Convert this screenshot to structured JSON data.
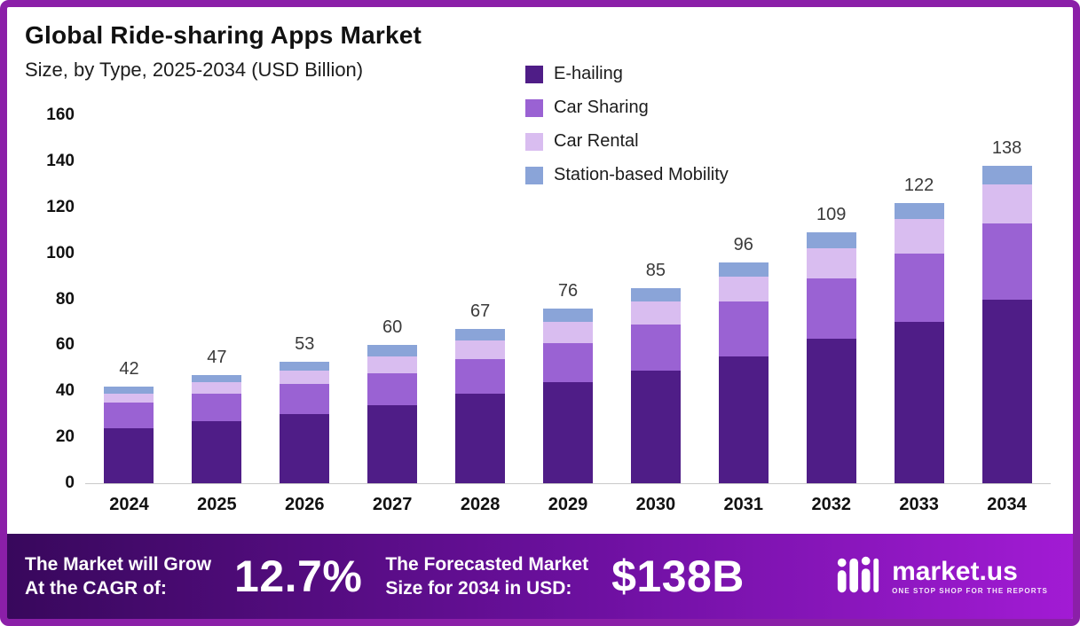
{
  "header": {
    "title": "Global Ride-sharing Apps Market",
    "subtitle": "Size, by Type, 2025-2034 (USD Billion)"
  },
  "chart_data": {
    "type": "bar",
    "stacked": true,
    "title": "Global Ride-sharing Apps Market Size, by Type, 2025-2034 (USD Billion)",
    "categories": [
      "2024",
      "2025",
      "2026",
      "2027",
      "2028",
      "2029",
      "2030",
      "2031",
      "2032",
      "2033",
      "2034"
    ],
    "series": [
      {
        "name": "E-hailing",
        "color": "#4f1d87",
        "values": [
          24,
          27,
          30,
          34,
          39,
          44,
          49,
          55,
          63,
          70,
          80
        ]
      },
      {
        "name": "Car Sharing",
        "color": "#9a62d3",
        "values": [
          11,
          12,
          13,
          14,
          15,
          17,
          20,
          24,
          26,
          30,
          33
        ]
      },
      {
        "name": "Car Rental",
        "color": "#d9bdf0",
        "values": [
          4,
          5,
          6,
          7,
          8,
          9,
          10,
          11,
          13,
          15,
          17
        ]
      },
      {
        "name": "Station-based Mobility",
        "color": "#8aa4d8",
        "values": [
          3,
          3,
          4,
          5,
          5,
          6,
          6,
          6,
          7,
          7,
          8
        ]
      }
    ],
    "totals": [
      42,
      47,
      53,
      60,
      67,
      76,
      85,
      96,
      109,
      122,
      138
    ],
    "ylim": [
      0,
      160
    ],
    "yticks": [
      0,
      20,
      40,
      60,
      80,
      100,
      120,
      140,
      160
    ],
    "grid": false,
    "legend_position": "top-right"
  },
  "footer": {
    "cagr_label_line1": "The Market will Grow",
    "cagr_label_line2": "At the CAGR of:",
    "cagr_value": "12.7%",
    "forecast_label_line1": "The Forecasted Market",
    "forecast_label_line2": "Size for 2034 in USD:",
    "forecast_value": "$138B",
    "brand": "market.us",
    "brand_tagline": "ONE STOP SHOP FOR THE REPORTS"
  },
  "colors": {
    "frame_border": "#8b1fa8",
    "footer_gradient_start": "#38085c",
    "footer_gradient_end": "#a21bd4",
    "bar_label_text": "#3a3a3a",
    "axis_text": "#111111"
  }
}
